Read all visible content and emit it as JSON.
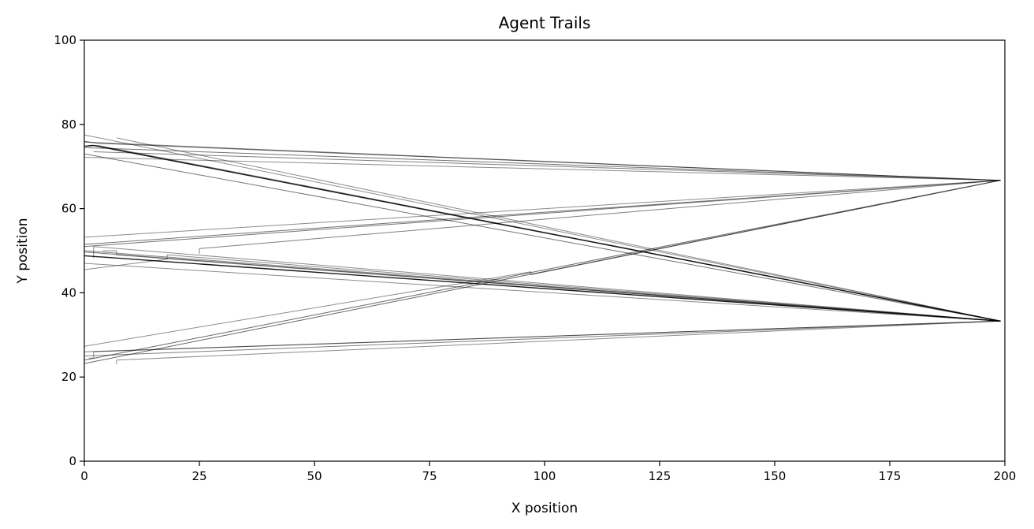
{
  "chart_data": {
    "type": "line",
    "title": "Agent Trails",
    "xlabel": "X position",
    "ylabel": "Y position",
    "xlim": [
      0,
      200
    ],
    "ylim": [
      0,
      100
    ],
    "xticks": [
      0,
      25,
      50,
      75,
      100,
      125,
      150,
      175,
      200
    ],
    "yticks": [
      0,
      20,
      40,
      60,
      80,
      100
    ],
    "grid": false,
    "legend": "none",
    "line_color": "#000000",
    "series": [
      {
        "values": [
          [
            0,
            76
          ],
          [
            3,
            75.5
          ],
          [
            199,
            66.7
          ],
          [
            0,
            74.5
          ]
        ],
        "opacity": 0.55
      },
      {
        "values": [
          [
            0,
            75.8
          ],
          [
            199,
            66.7
          ],
          [
            2,
            73.5
          ]
        ],
        "opacity": 0.5
      },
      {
        "values": [
          [
            0,
            72.2
          ],
          [
            199,
            66.7
          ]
        ],
        "opacity": 0.45
      },
      {
        "values": [
          [
            0,
            77.5
          ],
          [
            199,
            33.3
          ]
        ],
        "opacity": 0.45
      },
      {
        "values": [
          [
            0,
            73
          ],
          [
            199,
            33.3
          ],
          [
            0,
            49.7
          ]
        ],
        "opacity": 0.55
      },
      {
        "values": [
          [
            1,
            75
          ],
          [
            3,
            75
          ],
          [
            199,
            33.3
          ]
        ],
        "opacity": 0.5
      },
      {
        "values": [
          [
            7,
            76.8
          ],
          [
            199,
            33.3
          ]
        ],
        "opacity": 0.45
      },
      {
        "values": [
          [
            0,
            74.8
          ],
          [
            2,
            75
          ],
          [
            199,
            33.3
          ],
          [
            0,
            48.8
          ],
          [
            199,
            33.3
          ]
        ],
        "opacity": 0.9
      },
      {
        "values": [
          [
            0,
            51.5
          ],
          [
            199,
            66.7
          ],
          [
            0,
            51
          ]
        ],
        "opacity": 0.55
      },
      {
        "values": [
          [
            0,
            53.2
          ],
          [
            199,
            66.7
          ]
        ],
        "opacity": 0.45
      },
      {
        "values": [
          [
            25,
            49.3
          ],
          [
            25,
            50.5
          ],
          [
            199,
            66.7
          ]
        ],
        "opacity": 0.5
      },
      {
        "values": [
          [
            0,
            23.2
          ],
          [
            199,
            66.7
          ],
          [
            0,
            24
          ]
        ],
        "opacity": 0.6
      },
      {
        "values": [
          [
            0,
            27.3
          ],
          [
            97,
            45
          ],
          [
            97,
            44.3
          ],
          [
            199,
            66.7
          ]
        ],
        "opacity": 0.45
      },
      {
        "values": [
          [
            0,
            26
          ],
          [
            199,
            33.3
          ],
          [
            0,
            25
          ]
        ],
        "opacity": 0.5
      },
      {
        "values": [
          [
            7,
            23
          ],
          [
            7,
            24
          ],
          [
            199,
            33.3
          ]
        ],
        "opacity": 0.45
      },
      {
        "values": [
          [
            0,
            50
          ],
          [
            199,
            33.3
          ]
        ],
        "opacity": 0.5
      },
      {
        "values": [
          [
            0,
            47
          ],
          [
            199,
            33.3
          ]
        ],
        "opacity": 0.45
      },
      {
        "values": [
          [
            0,
            45.5
          ],
          [
            18,
            48
          ],
          [
            18,
            49
          ],
          [
            199,
            33.3
          ]
        ],
        "opacity": 0.45
      },
      {
        "values": [
          [
            2,
            48.2
          ],
          [
            2,
            51
          ],
          [
            199,
            33.3
          ]
        ],
        "opacity": 0.45
      },
      {
        "values": [
          [
            4,
            50
          ],
          [
            7,
            50
          ],
          [
            7,
            49
          ],
          [
            199,
            33.3
          ]
        ],
        "opacity": 0.45
      },
      {
        "values": [
          [
            1,
            24.5
          ],
          [
            2,
            24.5
          ],
          [
            2,
            26
          ],
          [
            199,
            33.3
          ]
        ],
        "opacity": 0.45
      }
    ]
  }
}
